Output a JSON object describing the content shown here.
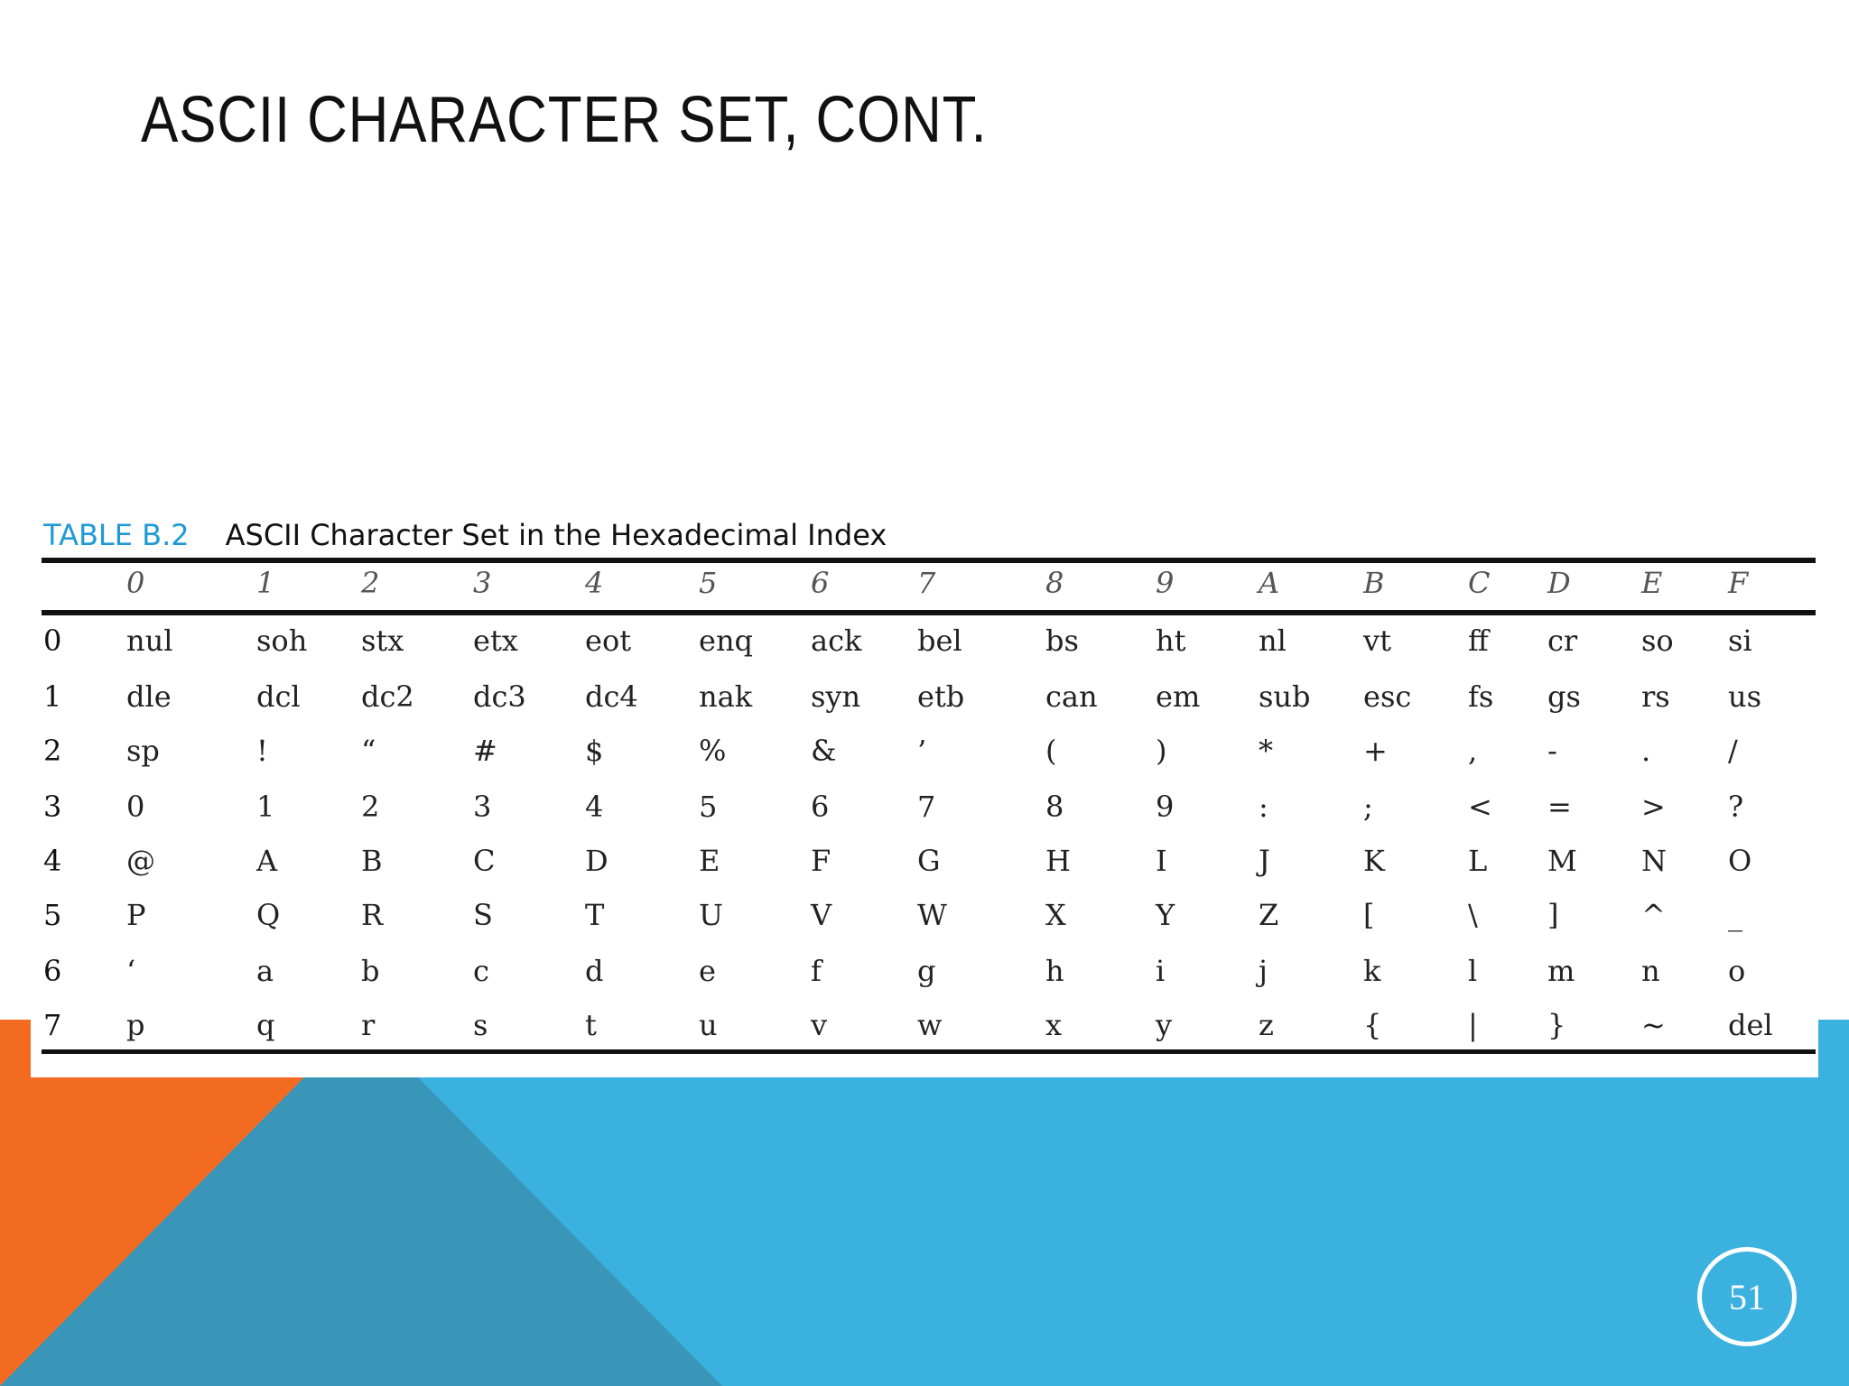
{
  "slide": {
    "title": "ASCII CHARACTER SET, CONT.",
    "page_number": "51"
  },
  "colors": {
    "orange": "#f26b21",
    "blue": "#3bb1e0",
    "dark_blue": "#3a96b8",
    "caption_blue": "#1f9ad6"
  },
  "table": {
    "caption_number": "TABLE B.2",
    "caption_text": "ASCII Character Set in the Hexadecimal Index",
    "column_headers": [
      "0",
      "1",
      "2",
      "3",
      "4",
      "5",
      "6",
      "7",
      "8",
      "9",
      "A",
      "B",
      "C",
      "D",
      "E",
      "F"
    ],
    "row_labels": [
      "0",
      "1",
      "2",
      "3",
      "4",
      "5",
      "6",
      "7"
    ],
    "rows": [
      [
        "nul",
        "soh",
        "stx",
        "etx",
        "eot",
        "enq",
        "ack",
        "bel",
        "bs",
        "ht",
        "nl",
        "vt",
        "ff",
        "cr",
        "so",
        "si"
      ],
      [
        "dle",
        "dcl",
        "dc2",
        "dc3",
        "dc4",
        "nak",
        "syn",
        "etb",
        "can",
        "em",
        "sub",
        "esc",
        "fs",
        "gs",
        "rs",
        "us"
      ],
      [
        "sp",
        "!",
        "“",
        "#",
        "$",
        "%",
        "&",
        "’",
        "(",
        ")",
        "*",
        "+",
        ",",
        "-",
        ".",
        "/"
      ],
      [
        "0",
        "1",
        "2",
        "3",
        "4",
        "5",
        "6",
        "7",
        "8",
        "9",
        ":",
        ";",
        "<",
        "=",
        ">",
        "?"
      ],
      [
        "@",
        "A",
        "B",
        "C",
        "D",
        "E",
        "F",
        "G",
        "H",
        "I",
        "J",
        "K",
        "L",
        "M",
        "N",
        "O"
      ],
      [
        "P",
        "Q",
        "R",
        "S",
        "T",
        "U",
        "V",
        "W",
        "X",
        "Y",
        "Z",
        "[",
        "\\",
        "]",
        "^",
        "_"
      ],
      [
        "‘",
        "a",
        "b",
        "c",
        "d",
        "e",
        "f",
        "g",
        "h",
        "i",
        "j",
        "k",
        "l",
        "m",
        "n",
        "o"
      ],
      [
        "p",
        "q",
        "r",
        "s",
        "t",
        "u",
        "v",
        "w",
        "x",
        "y",
        "z",
        "{",
        "|",
        "}",
        "~",
        "del"
      ]
    ]
  }
}
